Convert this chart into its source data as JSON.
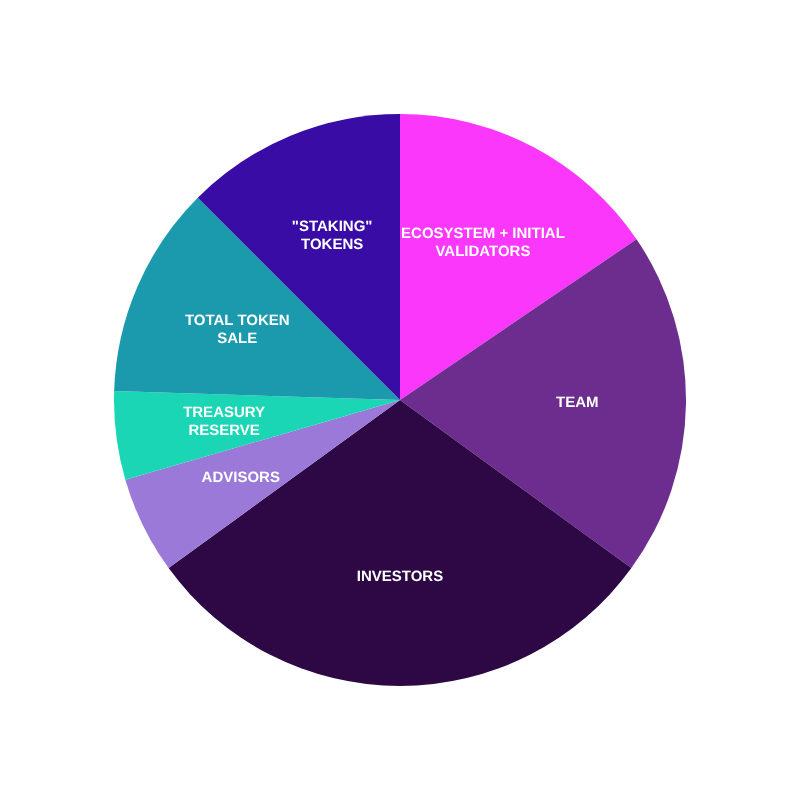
{
  "chart_data": {
    "type": "pie",
    "categories": [
      "ECOSYSTEM + INITIAL\nVALIDATORS",
      "TEAM",
      "INVESTORS",
      "ADVISORS",
      "TREASURY\nRESERVE",
      "TOTAL TOKEN\nSALE",
      "\"STAKING\"\nTOKENS"
    ],
    "values": [
      15.5,
      19.5,
      30,
      5.5,
      5,
      12,
      12.5
    ],
    "colors": [
      "#fb37fb",
      "#6c2d8e",
      "#2e0845",
      "#9b79d8",
      "#1bd6b4",
      "#1a9aac",
      "#3a0ca6"
    ]
  }
}
